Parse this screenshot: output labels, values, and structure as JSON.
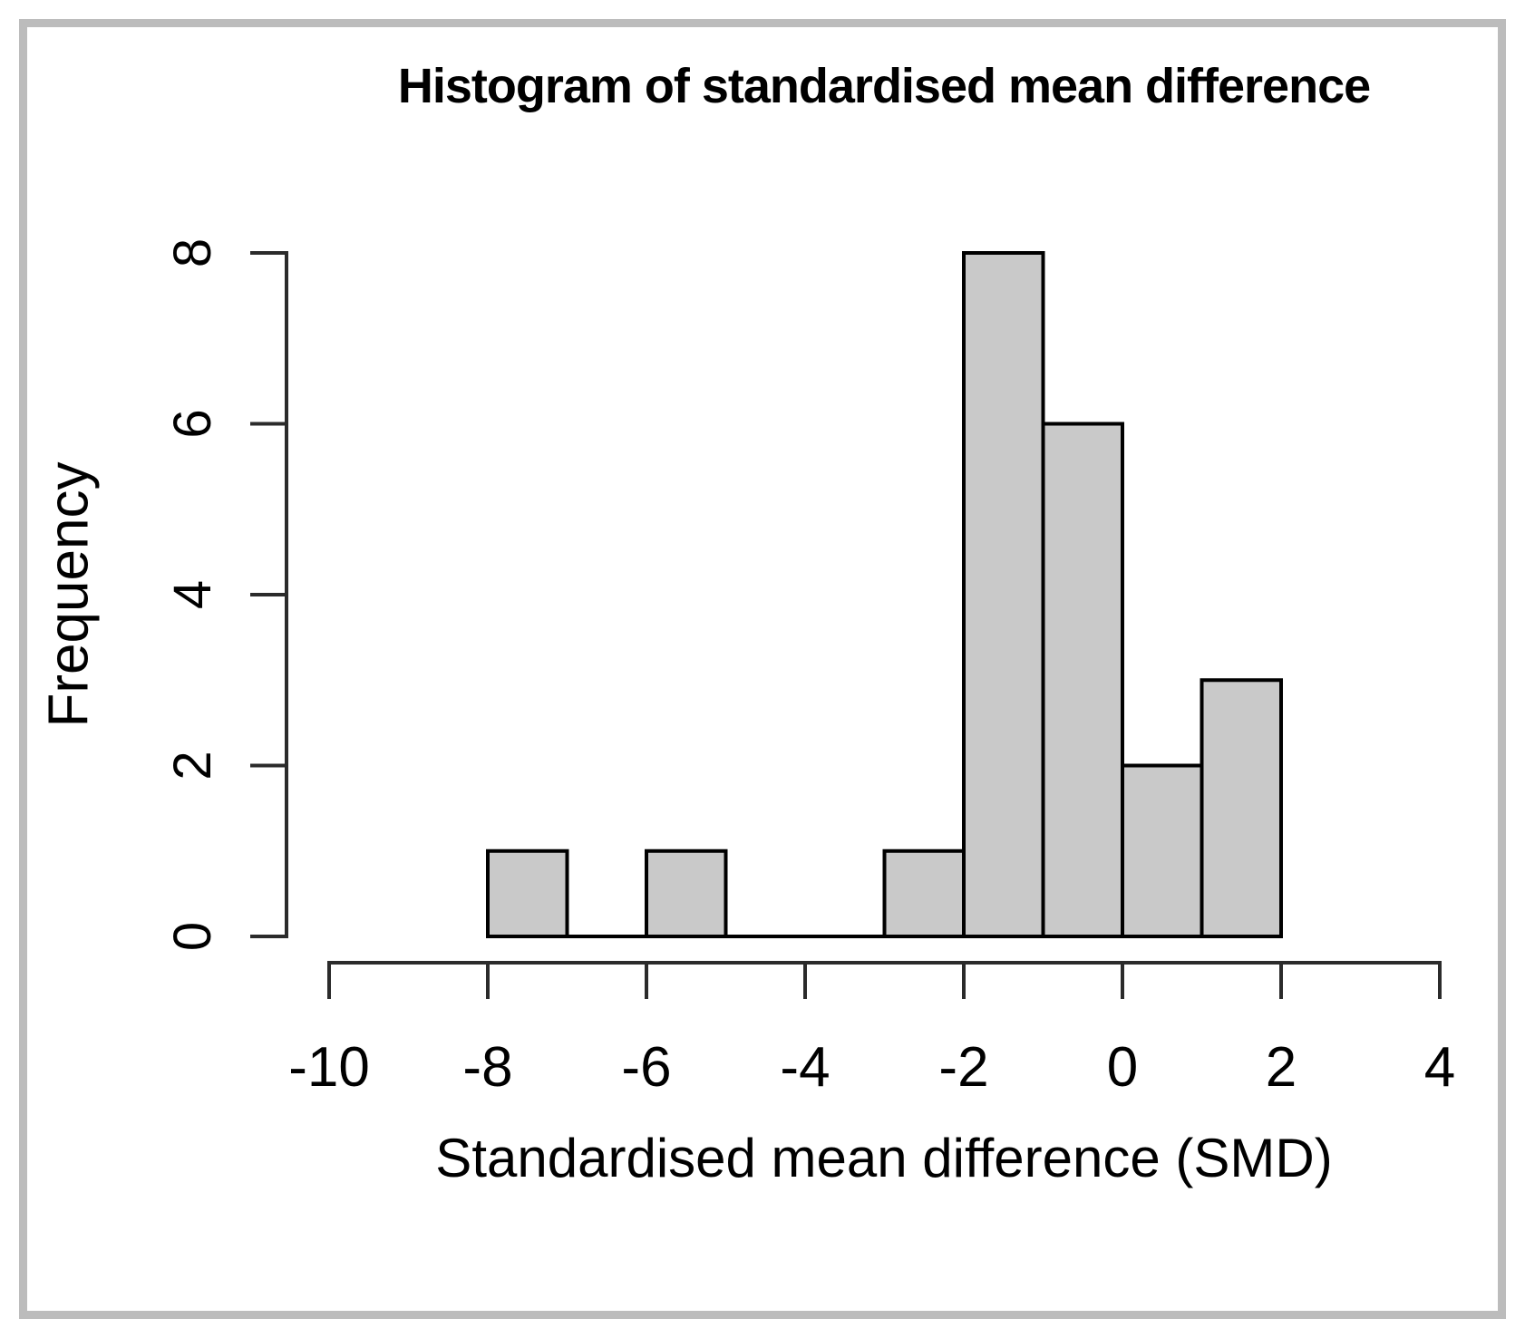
{
  "chart_data": {
    "type": "bar",
    "subtype": "histogram",
    "title": "Histogram of standardised mean difference",
    "xlabel": "Standardised mean difference (SMD)",
    "ylabel": "Frequency",
    "bin_width": 1,
    "bin_edges": [
      -8,
      -7,
      -6,
      -5,
      -4,
      -3,
      -2,
      -1,
      0,
      1,
      2
    ],
    "counts": [
      1,
      0,
      1,
      0,
      0,
      1,
      8,
      6,
      2,
      3
    ],
    "x_ticks": [
      -10,
      -8,
      -6,
      -4,
      -2,
      0,
      2,
      4
    ],
    "y_ticks": [
      0,
      2,
      4,
      6,
      8
    ],
    "xlim": [
      -10,
      4
    ],
    "ylim": [
      0,
      8
    ],
    "grid": false,
    "legend": "none",
    "colors": {
      "bar_fill": "#c9c9c9",
      "bar_stroke": "#000000",
      "axis": "#2b2b2b",
      "text": "#000000",
      "frame_border": "#bcbcbc"
    }
  }
}
